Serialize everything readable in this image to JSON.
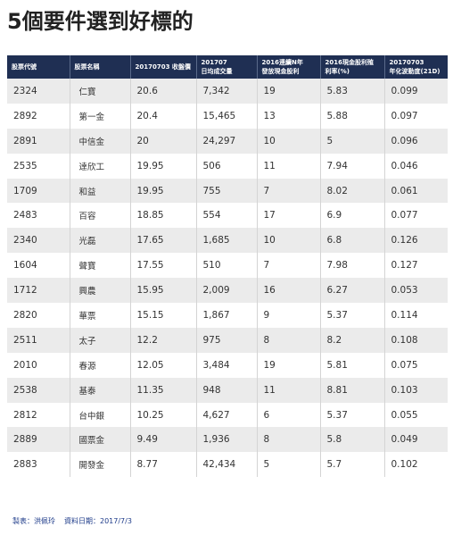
{
  "title": "5個要件選到好標的",
  "table": {
    "headers": [
      [
        "股票代號",
        ""
      ],
      [
        "股票名稱",
        ""
      ],
      [
        "20170703 收盤價",
        ""
      ],
      [
        "201707",
        "日均成交量"
      ],
      [
        "2016連續N年",
        "發放現金股利"
      ],
      [
        "2016現金股利殖",
        "利率(%)"
      ],
      [
        "20170703",
        "年化波動度(21D)"
      ]
    ],
    "rows": [
      [
        "2324",
        "仁寶",
        "20.6",
        "7,342",
        "19",
        "5.83",
        "0.099"
      ],
      [
        "2892",
        "第一金",
        "20.4",
        "15,465",
        "13",
        "5.88",
        "0.097"
      ],
      [
        "2891",
        "中信金",
        "20",
        "24,297",
        "10",
        "5",
        "0.096"
      ],
      [
        "2535",
        "達欣工",
        "19.95",
        "506",
        "11",
        "7.94",
        "0.046"
      ],
      [
        "1709",
        "和益",
        "19.95",
        "755",
        "7",
        "8.02",
        "0.061"
      ],
      [
        "2483",
        "百容",
        "18.85",
        "554",
        "17",
        "6.9",
        "0.077"
      ],
      [
        "2340",
        "光磊",
        "17.65",
        "1,685",
        "10",
        "6.8",
        "0.126"
      ],
      [
        "1604",
        "聲寶",
        "17.55",
        "510",
        "7",
        "7.98",
        "0.127"
      ],
      [
        "1712",
        "興農",
        "15.95",
        "2,009",
        "16",
        "6.27",
        "0.053"
      ],
      [
        "2820",
        "華票",
        "15.15",
        "1,867",
        "9",
        "5.37",
        "0.114"
      ],
      [
        "2511",
        "太子",
        "12.2",
        "975",
        "8",
        "8.2",
        "0.108"
      ],
      [
        "2010",
        "春源",
        "12.05",
        "3,484",
        "19",
        "5.81",
        "0.075"
      ],
      [
        "2538",
        "基泰",
        "11.35",
        "948",
        "11",
        "8.81",
        "0.103"
      ],
      [
        "2812",
        "台中銀",
        "10.25",
        "4,627",
        "6",
        "5.37",
        "0.055"
      ],
      [
        "2889",
        "國票金",
        "9.49",
        "1,936",
        "8",
        "5.8",
        "0.049"
      ],
      [
        "2883",
        "開發金",
        "8.77",
        "42,434",
        "5",
        "5.7",
        "0.102"
      ]
    ]
  },
  "footer": {
    "maker": "製表：洪佩玲",
    "date": "資料日期：2017/7/3"
  }
}
